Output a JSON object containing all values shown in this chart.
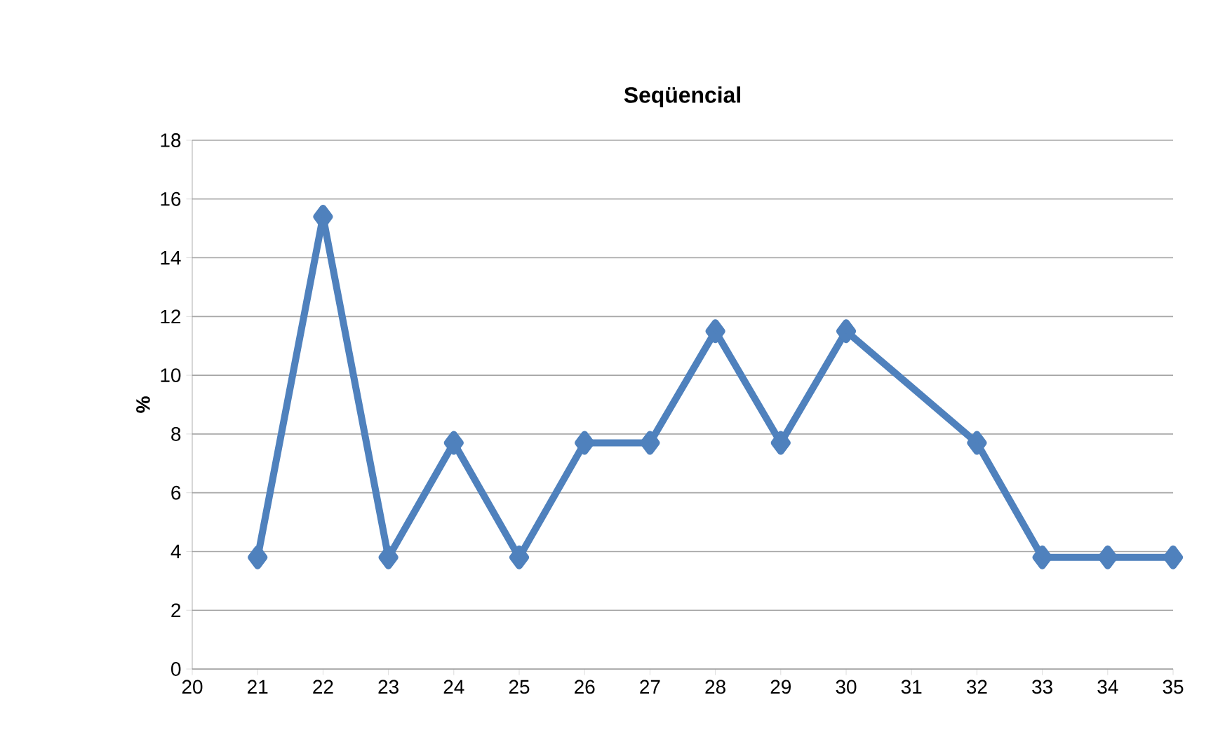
{
  "chart_data": {
    "type": "line",
    "title": "**Seqüencial**",
    "ylabel": "%",
    "xlim": [
      20,
      35
    ],
    "xticks": [
      20,
      21,
      22,
      23,
      24,
      25,
      26,
      27,
      28,
      29,
      30,
      31,
      32,
      33,
      34,
      35
    ],
    "ylim": [
      0,
      18
    ],
    "yticks": [
      0,
      2,
      4,
      6,
      8,
      10,
      12,
      14,
      16,
      18
    ],
    "grid": "y",
    "marker": "diamond",
    "line_style": "solid",
    "series": [
      {
        "color": "#4f81bd",
        "x": [
          21,
          22,
          23,
          24,
          25,
          26,
          27,
          28,
          29,
          30,
          32,
          33,
          34,
          35
        ],
        "values": [
          3.8,
          15.4,
          3.8,
          7.7,
          3.8,
          7.7,
          7.7,
          11.5,
          7.7,
          11.5,
          7.7,
          3.8,
          3.8,
          3.8
        ]
      }
    ]
  }
}
